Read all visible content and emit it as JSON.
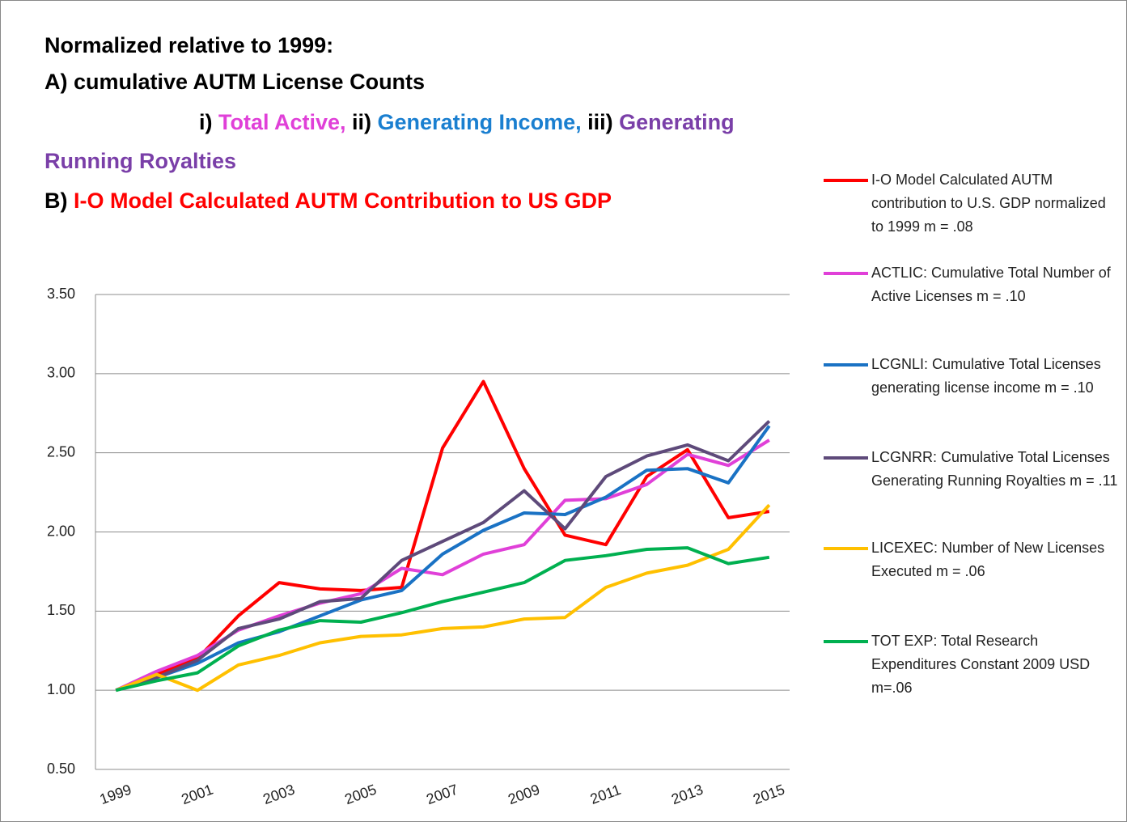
{
  "chart_data": {
    "type": "line",
    "title_lines": [
      [
        {
          "text": "Normalized relative to 1999:",
          "color": "#000000"
        }
      ],
      [
        {
          "text": "A) cumulative AUTM License Counts",
          "color": "#000000"
        }
      ],
      [
        {
          "text": "i) ",
          "color": "#000000"
        },
        {
          "text": "Total Active,",
          "color": "#e040d8"
        },
        {
          "text": " ii) ",
          "color": "#000000"
        },
        {
          "text": "Generating Income,",
          "color": "#1a7fd0"
        },
        {
          "text": " iii) ",
          "color": "#000000"
        },
        {
          "text": "Generating",
          "color": "#7a3fa8"
        }
      ],
      [
        {
          "text": "Running Royalties",
          "color": "#7a3fa8"
        }
      ],
      [
        {
          "text": "B) ",
          "color": "#000000"
        },
        {
          "text": "I-O Model Calculated AUTM Contribution to US GDP",
          "color": "#ff0000"
        }
      ]
    ],
    "categories": [
      "1999",
      null,
      "2001",
      null,
      "2003",
      null,
      "2005",
      null,
      "2007",
      null,
      "2009",
      null,
      "2011",
      null,
      "2013",
      null,
      "2015"
    ],
    "ylim": [
      0.5,
      3.5
    ],
    "yticks": [
      {
        "value": 0.5,
        "label": "0.50"
      },
      {
        "value": 1,
        "label": "1.00"
      },
      {
        "value": 1.5,
        "label": "1.50"
      },
      {
        "value": 2,
        "label": "2.00"
      },
      {
        "value": 2.5,
        "label": "2.50"
      },
      {
        "value": 3,
        "label": "3.00"
      },
      {
        "value": 3.5,
        "label": "3.50"
      }
    ],
    "grid": true,
    "series": [
      {
        "name": "I-O Model Calculated  AUTM contribution to U.S. GDP normalized to 1999 m = .08",
        "color": "#ff0000",
        "values": [
          1.0,
          1.1,
          1.2,
          1.47,
          1.68,
          1.64,
          1.63,
          1.65,
          2.53,
          2.95,
          2.4,
          1.98,
          1.92,
          2.35,
          2.52,
          2.09,
          2.13
        ]
      },
      {
        "name": "ACTLIC: Cumulative Total Number of Active Licenses m = .10",
        "color": "#e040d8",
        "values": [
          1.0,
          1.12,
          1.22,
          1.38,
          1.47,
          1.55,
          1.61,
          1.77,
          1.73,
          1.86,
          1.92,
          2.2,
          2.21,
          2.3,
          2.49,
          2.42,
          2.58
        ]
      },
      {
        "name": "LCGNLI:  Cumulative Total Licenses generating license income m = .10",
        "color": "#1a72c4",
        "values": [
          1.0,
          1.08,
          1.17,
          1.3,
          1.37,
          1.47,
          1.57,
          1.63,
          1.86,
          2.01,
          2.12,
          2.11,
          2.22,
          2.39,
          2.4,
          2.31,
          2.67
        ]
      },
      {
        "name": "LCGNRR: Cumulative Total Licenses Generating Running Royalties m = .11",
        "color": "#5e4a7a",
        "values": [
          1.0,
          1.08,
          1.19,
          1.39,
          1.45,
          1.56,
          1.58,
          1.82,
          1.94,
          2.06,
          2.26,
          2.02,
          2.35,
          2.48,
          2.55,
          2.45,
          2.7
        ]
      },
      {
        "name": "LICEXEC: Number of New Licenses Executed m = .06",
        "color": "#ffc000",
        "values": [
          1.0,
          1.1,
          1.0,
          1.16,
          1.22,
          1.3,
          1.34,
          1.35,
          1.39,
          1.4,
          1.45,
          1.46,
          1.65,
          1.74,
          1.79,
          1.89,
          2.17
        ]
      },
      {
        "name": "TOT EXP:  Total Research Expenditures Constant 2009 USD m=.06",
        "color": "#00b050",
        "values": [
          1.0,
          1.06,
          1.11,
          1.28,
          1.38,
          1.44,
          1.43,
          1.49,
          1.56,
          1.62,
          1.68,
          1.82,
          1.85,
          1.89,
          1.9,
          1.8,
          1.84
        ]
      }
    ]
  }
}
